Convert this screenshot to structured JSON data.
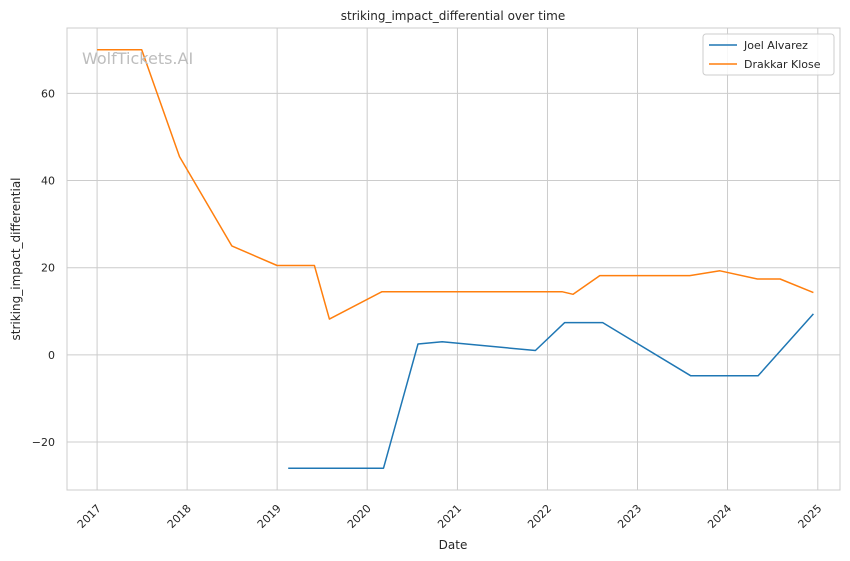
{
  "watermark": "WolfTickets.AI",
  "chart_data": {
    "type": "line",
    "title": "striking_impact_differential over time",
    "xlabel": "Date",
    "ylabel": "striking_impact_differential",
    "x_ticks": [
      "2017",
      "2018",
      "2019",
      "2020",
      "2021",
      "2022",
      "2023",
      "2024",
      "2025"
    ],
    "y_ticks": [
      -20,
      0,
      20,
      40,
      60
    ],
    "xlim": [
      "2016-09-01",
      "2025-04-01"
    ],
    "ylim": [
      -31,
      75
    ],
    "grid": true,
    "legend_position": "top-right",
    "series": [
      {
        "name": "Joel Alvarez",
        "color": "#1f77b4",
        "points": [
          [
            "2019-02-15",
            -26
          ],
          [
            "2020-03-07",
            -26
          ],
          [
            "2020-07-25",
            2.5
          ],
          [
            "2020-10-31",
            3.0
          ],
          [
            "2021-11-13",
            1.0
          ],
          [
            "2022-03-12",
            7.4
          ],
          [
            "2022-08-13",
            7.4
          ],
          [
            "2023-08-05",
            -4.8
          ],
          [
            "2024-05-04",
            -4.8
          ],
          [
            "2024-12-14",
            9.4
          ]
        ]
      },
      {
        "name": "Drakkar Klose",
        "color": "#ff7f0e",
        "points": [
          [
            "2017-01-01",
            70
          ],
          [
            "2017-07-01",
            70
          ],
          [
            "2017-12-01",
            45.5
          ],
          [
            "2018-07-01",
            25
          ],
          [
            "2019-01-01",
            20.5
          ],
          [
            "2019-06-01",
            20.5
          ],
          [
            "2019-08-01",
            8.2
          ],
          [
            "2020-03-01",
            14.5
          ],
          [
            "2022-03-01",
            14.5
          ],
          [
            "2022-04-15",
            13.9
          ],
          [
            "2022-08-01",
            18.2
          ],
          [
            "2023-08-01",
            18.2
          ],
          [
            "2023-12-01",
            19.3
          ],
          [
            "2024-05-01",
            17.4
          ],
          [
            "2024-08-01",
            17.4
          ],
          [
            "2024-12-14",
            14.3
          ]
        ]
      }
    ]
  }
}
